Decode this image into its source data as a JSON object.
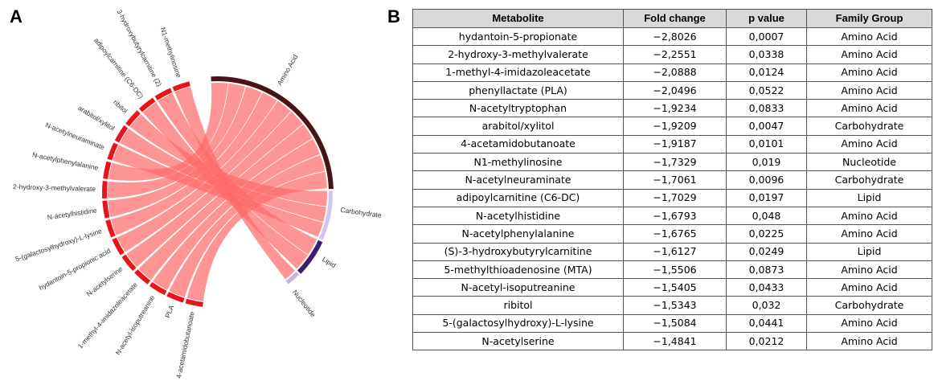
{
  "panels": {
    "a_label": "A",
    "b_label": "B"
  },
  "chord": {
    "colors": {
      "metabolite_segment": "#e8141c",
      "ribbon": "#ff6b6b",
      "ribbon_dark": "#e8141c",
      "amino_acid": "#4a1414",
      "carbohydrate": "#d6c3ea",
      "lipid": "#3d1f66",
      "nucleotide": "#c7b3e3"
    },
    "metabolites": [
      "N1-methylinosine",
      "3-hydroxybutyrylcarnitine (2)",
      "adipoylcarnitine (C6-DC)",
      "ribitol",
      "arabitol/xylitol",
      "N-acetylneuraminate",
      "N-acetylphenylalanine",
      "2-hydroxy-3-methylvalerate",
      "N-acetylhistidine",
      "5-(galactosylhydroxy)-L-lysine",
      "hydantoin-5-propionic acid",
      "N-acetylserine",
      "1-methyl-4-imidazoleacetate",
      "N-acetyl-isoputreanine",
      "PLA",
      "4-acetamidobutanoate"
    ],
    "groups": [
      "Amino Acid",
      "Carbohydrate",
      "Lipid",
      "Nucleotide"
    ]
  },
  "table": {
    "headers": [
      "Metabolite",
      "Fold change",
      "p value",
      "Family Group"
    ],
    "rows": [
      [
        "hydantoin-5-propionate",
        "−2,8026",
        "0,0007",
        "Amino Acid"
      ],
      [
        "2-hydroxy-3-methylvalerate",
        "−2,2551",
        "0,0338",
        "Amino Acid"
      ],
      [
        "1-methyl-4-imidazoleacetate",
        "−2,0888",
        "0,0124",
        "Amino Acid"
      ],
      [
        "phenyllactate (PLA)",
        "−2,0496",
        "0,0522",
        "Amino Acid"
      ],
      [
        "N-acetyltryptophan",
        "−1,9234",
        "0,0833",
        "Amino Acid"
      ],
      [
        "arabitol/xylitol",
        "−1,9209",
        "0,0047",
        "Carbohydrate"
      ],
      [
        "4-acetamidobutanoate",
        "−1,9187",
        "0,0101",
        "Amino Acid"
      ],
      [
        "N1-methylinosine",
        "−1,7329",
        "0,019",
        "Nucleotide"
      ],
      [
        "N-acetylneuraminate",
        "−1,7061",
        "0,0096",
        "Carbohydrate"
      ],
      [
        "adipoylcarnitine (C6-DC)",
        "−1,7029",
        "0,0197",
        "Lipid"
      ],
      [
        "N-acetylhistidine",
        "−1,6793",
        "0,048",
        "Amino Acid"
      ],
      [
        "N-acetylphenylalanine",
        "−1,6765",
        "0,0225",
        "Amino Acid"
      ],
      [
        "(S)-3-hydroxybutyrylcarnitine",
        "−1,6127",
        "0,0249",
        "Lipid"
      ],
      [
        "5-methylthioadenosine (MTA)",
        "−1,5506",
        "0,0873",
        "Amino Acid"
      ],
      [
        "N-acetyl-isoputreanine",
        "−1,5405",
        "0,0433",
        "Amino Acid"
      ],
      [
        "ribitol",
        "−1,5343",
        "0,032",
        "Carbohydrate"
      ],
      [
        "5-(galactosylhydroxy)-L-lysine",
        "−1,5084",
        "0,0441",
        "Amino Acid"
      ],
      [
        "N-acetylserine",
        "−1,4841",
        "0,0212",
        "Amino Acid"
      ]
    ]
  }
}
